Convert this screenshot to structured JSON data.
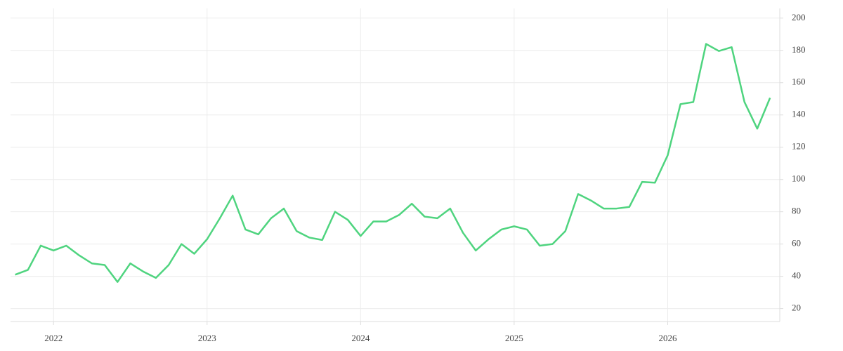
{
  "chart_data": {
    "type": "line",
    "x": [
      "2021-10",
      "2021-11",
      "2021-12",
      "2022-01",
      "2022-02",
      "2022-03",
      "2022-04",
      "2022-05",
      "2022-06",
      "2022-07",
      "2022-08",
      "2022-09",
      "2022-10",
      "2022-11",
      "2022-12",
      "2023-01",
      "2023-02",
      "2023-03",
      "2023-04",
      "2023-05",
      "2023-06",
      "2023-07",
      "2023-08",
      "2023-09",
      "2023-10",
      "2023-11",
      "2023-12",
      "2024-01",
      "2024-02",
      "2024-03",
      "2024-04",
      "2024-05",
      "2024-06",
      "2024-07",
      "2024-08",
      "2024-09",
      "2024-10",
      "2024-11",
      "2024-12",
      "2025-01",
      "2025-02",
      "2025-03",
      "2025-04",
      "2025-05",
      "2025-06",
      "2025-07",
      "2025-08",
      "2025-09",
      "2025-10",
      "2025-11",
      "2025-12",
      "2026-01",
      "2026-02",
      "2026-03",
      "2026-04",
      "2026-05",
      "2026-06",
      "2026-07",
      "2026-08",
      "2026-09"
    ],
    "series": [
      {
        "color": "#4fd47f",
        "values": [
          41,
          44,
          59,
          56,
          59,
          53,
          48,
          47,
          36.5,
          48,
          43,
          39,
          47,
          60,
          54,
          63,
          76,
          90,
          69,
          66,
          76,
          82,
          68,
          64,
          62.5,
          80,
          75,
          65,
          74,
          74,
          78,
          85,
          77,
          76,
          82,
          67,
          56,
          63,
          69,
          71,
          69,
          59,
          60,
          68,
          91,
          87,
          82,
          82,
          83,
          98.5,
          98,
          115,
          146.7,
          148,
          184,
          179.6,
          182,
          148,
          131.5,
          150.6
        ]
      }
    ],
    "xlim": [
      2021.72,
      2026.73
    ],
    "xticks": [
      2022,
      2023,
      2024,
      2025,
      2026
    ],
    "ylim": [
      12,
      206
    ],
    "yticks": [
      20,
      40,
      60,
      80,
      100,
      120,
      140,
      160,
      180,
      200
    ],
    "grid": true
  }
}
